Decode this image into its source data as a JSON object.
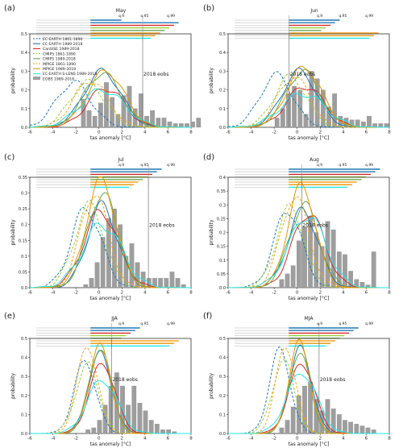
{
  "chart_data": {
    "type": "line",
    "series_meta": [
      {
        "name": "EC-EARTH 1861-1890",
        "color": "#1f77b4",
        "dash": true
      },
      {
        "name": "EC-EARTH 1989-2018",
        "color": "#1f77b4",
        "dash": false
      },
      {
        "name": "CanSISE 1989-2018",
        "color": "#d62728",
        "dash": false
      },
      {
        "name": "CMIP5 1861-1890",
        "color": "#9acd32",
        "dash": true
      },
      {
        "name": "CMIP5 1989-2018",
        "color": "#6aa84f",
        "dash": false
      },
      {
        "name": "MPIGE 1861-1890",
        "color": "#ff9f1a",
        "dash": true
      },
      {
        "name": "MPIGE 1989-2018",
        "color": "#e69500",
        "dash": false
      },
      {
        "name": "EC-EARTH S-LENS 1989-2018",
        "color": "#22e6e6",
        "dash": false
      },
      {
        "name": "EOBS 1989-2018",
        "color": "#9e9e9e",
        "type": "bar"
      }
    ],
    "xlabel": "tas anomaly [°C]",
    "ylabel": "probability",
    "quantile_labels": [
      "q.9",
      "q.95",
      "q.99"
    ],
    "obs_label": "2018 eobs",
    "panels": [
      {
        "letter": "(a)",
        "title": "May",
        "xlim": [
          -6,
          8
        ],
        "ylim": [
          0,
          0.5
        ],
        "xticks": [
          -6,
          -4,
          -2,
          0,
          2,
          4,
          6,
          8
        ],
        "yticks": [
          0.0,
          0.1,
          0.2,
          0.3,
          0.4,
          0.5
        ],
        "obs": 3.8,
        "peaks": [
          -2.2,
          0.3,
          0.6,
          -1.0,
          0.3,
          -0.7,
          0.6,
          0.3
        ],
        "heights": [
          0.24,
          0.3,
          0.21,
          0.24,
          0.29,
          0.25,
          0.3,
          0.2
        ],
        "widths": [
          1.5,
          1.6,
          1.6,
          1.5,
          1.6,
          1.5,
          1.6,
          1.9
        ],
        "bars": [
          0.15,
          0.09,
          0.06,
          0.13,
          0.24,
          0.16,
          0.07,
          0.17,
          0.22,
          0.1,
          0.18,
          0.06,
          0.09,
          0.05,
          0.05,
          0.03,
          0.02,
          0.02,
          0.02,
          0.03,
          0.05
        ],
        "bars_x0": -1.6
      },
      {
        "letter": "(b)",
        "title": "Jun",
        "xlim": [
          -6,
          8
        ],
        "ylim": [
          0,
          0.5
        ],
        "xticks": [
          -6,
          -4,
          -2,
          0,
          2,
          4,
          6,
          8
        ],
        "yticks": [
          0.0,
          0.1,
          0.2,
          0.3,
          0.4,
          0.5
        ],
        "obs": -0.7,
        "peaks": [
          -1.8,
          0.2,
          0.7,
          -0.6,
          0.5,
          -0.3,
          0.6,
          0.5
        ],
        "heights": [
          0.28,
          0.3,
          0.22,
          0.27,
          0.3,
          0.27,
          0.32,
          0.18
        ],
        "widths": [
          1.4,
          1.5,
          1.6,
          1.4,
          1.5,
          1.4,
          1.5,
          1.9
        ],
        "bars": [
          0.05,
          0.1,
          0.18,
          0.22,
          0.2,
          0.07,
          0.3,
          0.26,
          0.2,
          0.11,
          0.18,
          0.06,
          0.05,
          0.04,
          0.04,
          0.03,
          0.06,
          0.02,
          0.02,
          0.02
        ],
        "bars_x0": -2.0
      },
      {
        "letter": "(c)",
        "title": "Jul",
        "xlim": [
          -6,
          8
        ],
        "ylim": [
          0,
          0.35
        ],
        "xticks": [
          -6,
          -4,
          -2,
          0,
          2,
          4,
          6,
          8
        ],
        "yticks": [
          0.0,
          0.05,
          0.1,
          0.15,
          0.2,
          0.25,
          0.3,
          0.35
        ],
        "obs": 4.3,
        "peaks": [
          -1.1,
          0.3,
          0.2,
          -0.8,
          0.3,
          -0.4,
          0.2,
          0.3
        ],
        "heights": [
          0.25,
          0.26,
          0.24,
          0.26,
          0.3,
          0.3,
          0.34,
          0.2
        ],
        "widths": [
          1.3,
          1.3,
          1.5,
          1.3,
          1.3,
          1.2,
          1.3,
          1.7
        ],
        "bars": [
          0.01,
          0.03,
          0.08,
          0.16,
          0.22,
          0.25,
          0.2,
          0.1,
          0.14,
          0.08,
          0.05,
          0.03,
          0.03,
          0.03,
          0.03,
          0.05,
          0.03,
          0.01
        ],
        "bars_x0": -1.4
      },
      {
        "letter": "(d)",
        "title": "Aug",
        "xlim": [
          -6,
          8
        ],
        "ylim": [
          0,
          0.4
        ],
        "xticks": [
          -6,
          -4,
          -2,
          0,
          2,
          4,
          6,
          8
        ],
        "yticks": [
          0.0,
          0.05,
          0.1,
          0.15,
          0.2,
          0.25,
          0.3,
          0.35,
          0.4
        ],
        "obs": 0.4,
        "peaks": [
          -0.8,
          0.5,
          1.0,
          -0.6,
          0.6,
          -0.2,
          0.4,
          0.9
        ],
        "heights": [
          0.28,
          0.28,
          0.27,
          0.29,
          0.3,
          0.33,
          0.37,
          0.26
        ],
        "widths": [
          1.2,
          1.3,
          1.4,
          1.2,
          1.3,
          1.2,
          1.2,
          1.6
        ],
        "bars": [
          0.03,
          0.05,
          0.08,
          0.17,
          0.22,
          0.26,
          0.2,
          0.15,
          0.24,
          0.21,
          0.13,
          0.12,
          0.06,
          0.03,
          0.02,
          0.01,
          0.13
        ],
        "bars_x0": -1.6
      },
      {
        "letter": "(e)",
        "title": "JJA",
        "xlim": [
          -6,
          8
        ],
        "ylim": [
          0,
          0.5
        ],
        "xticks": [
          -6,
          -4,
          -2,
          0,
          2,
          4,
          6,
          8
        ],
        "yticks": [
          0.0,
          0.1,
          0.2,
          0.3,
          0.4,
          0.5
        ],
        "obs": 1.1,
        "peaks": [
          -1.2,
          0.1,
          0.3,
          -1.0,
          0.1,
          -1.0,
          0.1,
          0.3
        ],
        "heights": [
          0.38,
          0.42,
          0.37,
          0.36,
          0.45,
          0.46,
          0.46,
          0.28
        ],
        "widths": [
          0.95,
          1.0,
          1.1,
          1.0,
          0.95,
          0.9,
          0.95,
          1.3
        ],
        "bars": [
          0.02,
          0.03,
          0.07,
          0.15,
          0.25,
          0.32,
          0.25,
          0.15,
          0.25,
          0.16,
          0.12,
          0.07,
          0.05,
          0.02,
          0.02,
          0.01
        ],
        "bars_x0": -1.2
      },
      {
        "letter": "(f)",
        "title": "MJA",
        "xlim": [
          -6,
          8
        ],
        "ylim": [
          0,
          0.5
        ],
        "xticks": [
          -6,
          -4,
          -2,
          0,
          2,
          4,
          6,
          8
        ],
        "yticks": [
          0.0,
          0.1,
          0.2,
          0.3,
          0.4,
          0.5
        ],
        "obs": 1.9,
        "peaks": [
          -1.5,
          0.3,
          0.4,
          -1.2,
          0.2,
          -1.0,
          0.2,
          0.4
        ],
        "heights": [
          0.44,
          0.45,
          0.37,
          0.38,
          0.43,
          0.46,
          0.48,
          0.32
        ],
        "widths": [
          0.9,
          0.95,
          1.1,
          0.95,
          0.9,
          0.85,
          0.9,
          1.3
        ],
        "bars": [
          0.03,
          0.07,
          0.14,
          0.2,
          0.25,
          0.27,
          0.18,
          0.12,
          0.18,
          0.13,
          0.1,
          0.07,
          0.06,
          0.05,
          0.04,
          0.03,
          0.02
        ],
        "bars_x0": -1.6
      }
    ]
  }
}
